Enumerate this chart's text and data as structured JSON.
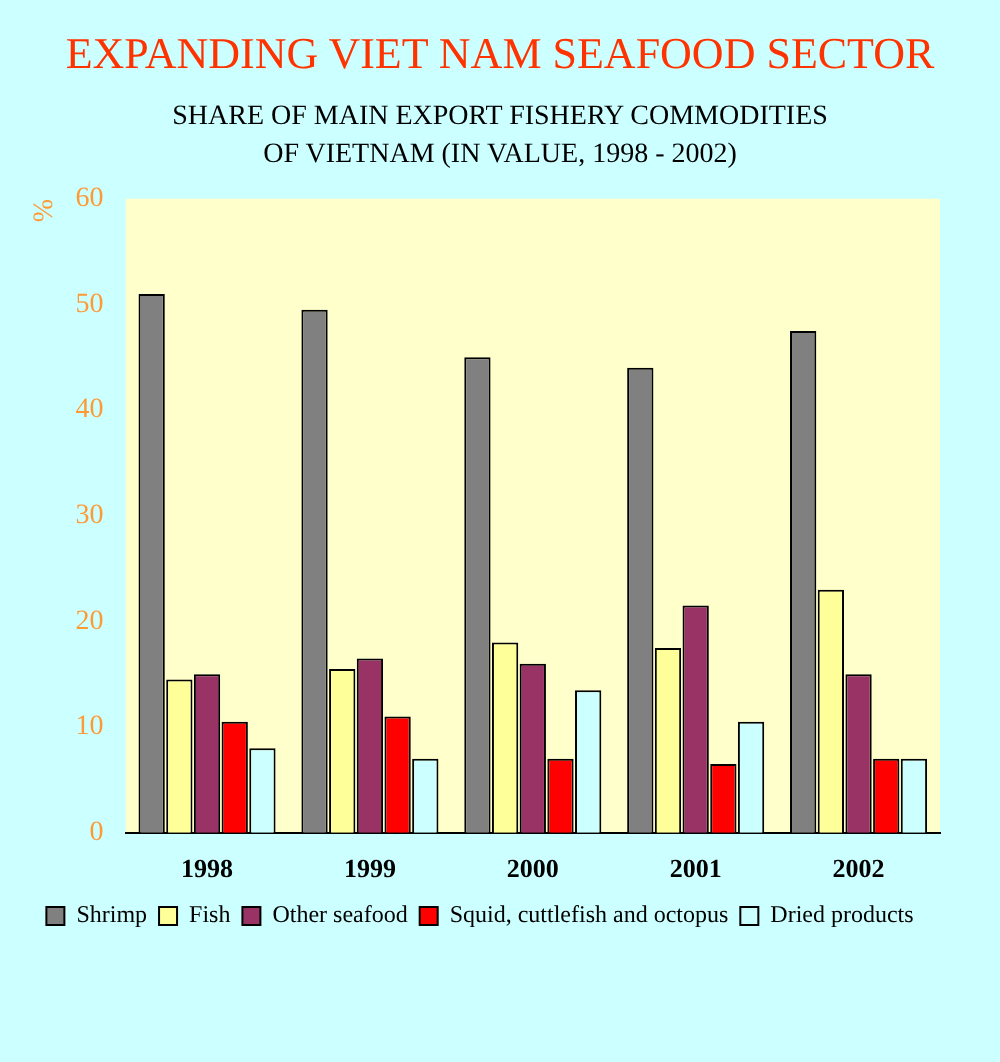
{
  "chart_data": {
    "type": "bar",
    "title": "EXPANDING VIET NAM SEAFOOD SECTOR",
    "subtitle": "SHARE OF MAIN EXPORT FISHERY COMMODITIES\nOF VIETNAM (IN VALUE, 1998 - 2002)",
    "ylabel": "%",
    "categories": [
      "1998",
      "1999",
      "2000",
      "2001",
      "2002"
    ],
    "series": [
      {
        "name": "Shrimp",
        "color": "#808080",
        "values": [
          51,
          49.5,
          45,
          44,
          47.5
        ]
      },
      {
        "name": "Fish",
        "color": "#ffff99",
        "values": [
          14.5,
          15.5,
          18,
          17.5,
          23
        ]
      },
      {
        "name": "Other seafood",
        "color": "#993366",
        "values": [
          15,
          16.5,
          16,
          21.5,
          15
        ]
      },
      {
        "name": "Squid, cuttlefish and octopus",
        "color": "#ff0000",
        "values": [
          10.5,
          11,
          7,
          6.5,
          7
        ]
      },
      {
        "name": "Dried products",
        "color": "#ccffff",
        "values": [
          8,
          7,
          13.5,
          10.5,
          7
        ]
      }
    ],
    "ylim": [
      0,
      60
    ],
    "yticks": [
      0,
      10,
      20,
      30,
      40,
      50,
      60
    ],
    "grid": false,
    "legend": "bottom"
  }
}
